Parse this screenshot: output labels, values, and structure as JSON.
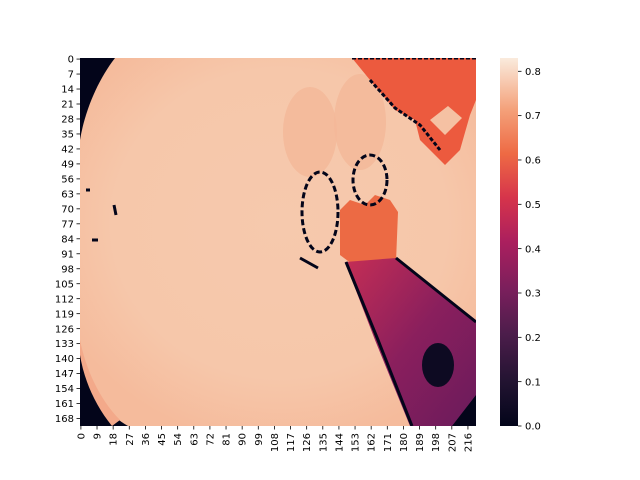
{
  "chart_data": {
    "type": "heatmap",
    "title": "",
    "xlabel": "",
    "ylabel": "",
    "grid": false,
    "colormap": "rocket",
    "nrows": 172,
    "ncols": 221,
    "x_tick_labels": [
      "0",
      "9",
      "18",
      "27",
      "36",
      "45",
      "54",
      "63",
      "72",
      "81",
      "90",
      "99",
      "108",
      "117",
      "126",
      "135",
      "144",
      "153",
      "162",
      "171",
      "180",
      "189",
      "198",
      "207",
      "216"
    ],
    "y_tick_labels": [
      "0",
      "7",
      "14",
      "21",
      "28",
      "35",
      "42",
      "49",
      "56",
      "63",
      "70",
      "77",
      "84",
      "91",
      "98",
      "105",
      "112",
      "119",
      "126",
      "133",
      "140",
      "147",
      "154",
      "161",
      "168"
    ],
    "colorbar": {
      "vmin": 0.0,
      "vmax": 0.83,
      "tick_labels": [
        "0.0",
        "0.1",
        "0.2",
        "0.3",
        "0.4",
        "0.5",
        "0.6",
        "0.7",
        "0.8"
      ]
    },
    "description_values": {
      "background_level": 0.0,
      "dome_level": 0.8,
      "dome_center_level": 0.76,
      "bottle_neck_level": 0.6,
      "bottle_body_level": 0.38,
      "top_right_object_level": 0.6
    }
  }
}
